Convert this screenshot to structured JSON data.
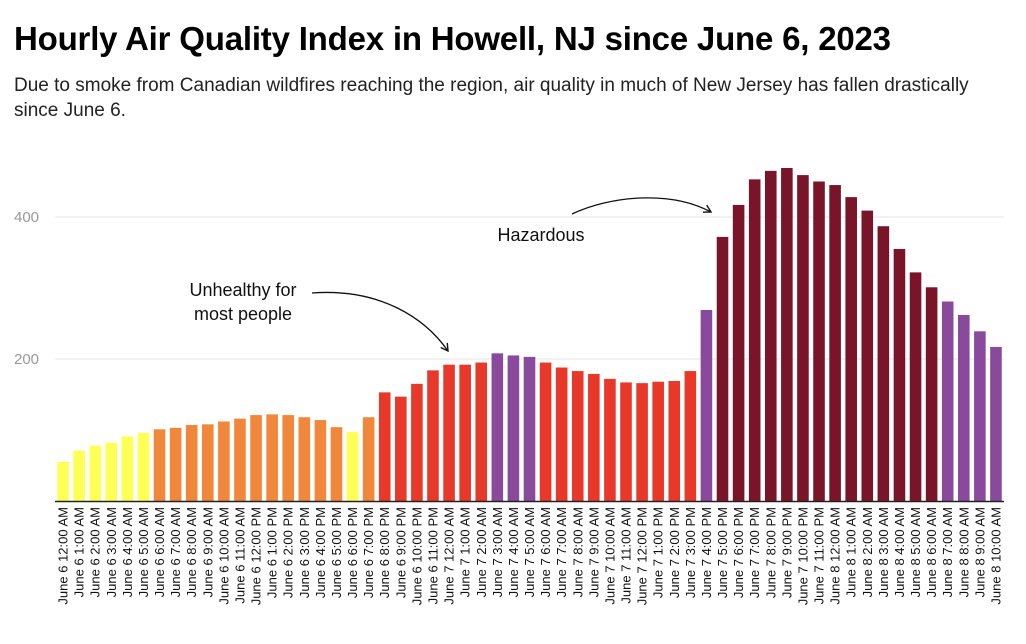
{
  "header": {
    "title": "Hourly Air Quality Index in Howell, NJ since June 6, 2023",
    "subtitle": "Due to smoke from Canadian wildfires reaching the region, air quality in much of New Jersey has fallen drastically since June 6."
  },
  "chart_data": {
    "type": "bar",
    "title": "Hourly Air Quality Index in Howell, NJ since June 6, 2023",
    "xlabel": "",
    "ylabel": "",
    "ylim": [
      0,
      480
    ],
    "yticks": [
      200,
      400
    ],
    "grid": true,
    "colors": {
      "yellow": "#ffff55",
      "orange": "#f0873a",
      "red": "#e8382a",
      "purple": "#8a4a9c",
      "maroon": "#7a1428",
      "grid": "#e6e6e6",
      "axis": "#222222"
    },
    "categories": [
      "June 6 12:00 AM",
      "June 6 1:00 AM",
      "June 6 2:00 AM",
      "June 6 3:00 AM",
      "June 6 4:00 AM",
      "June 6 5:00 AM",
      "June 6 6:00 AM",
      "June 6 7:00 AM",
      "June 6 8:00 AM",
      "June 6 9:00 AM",
      "June 6 10:00 AM",
      "June 6 11:00 AM",
      "June 6 12:00 PM",
      "June 6 1:00 PM",
      "June 6 2:00 PM",
      "June 6 3:00 PM",
      "June 6 4:00 PM",
      "June 6 5:00 PM",
      "June 6 6:00 PM",
      "June 6 7:00 PM",
      "June 6 8:00 PM",
      "June 6 9:00 PM",
      "June 6 10:00 PM",
      "June 6 11:00 PM",
      "June 7 12:00 AM",
      "June 7 1:00 AM",
      "June 7 2:00 AM",
      "June 7 3:00 AM",
      "June 7 4:00 AM",
      "June 7 5:00 AM",
      "June 7 6:00 AM",
      "June 7 7:00 AM",
      "June 7 8:00 AM",
      "June 7 9:00 AM",
      "June 7 10:00 AM",
      "June 7 11:00 AM",
      "June 7 12:00 PM",
      "June 7 1:00 PM",
      "June 7 2:00 PM",
      "June 7 3:00 PM",
      "June 7 4:00 PM",
      "June 7 5:00 PM",
      "June 7 6:00 PM",
      "June 7 7:00 PM",
      "June 7 8:00 PM",
      "June 7 9:00 PM",
      "June 7 10:00 PM",
      "June 7 11:00 PM",
      "June 8 12:00 AM",
      "June 8 1:00 AM",
      "June 8 2:00 AM",
      "June 8 3:00 AM",
      "June 8 4:00 AM",
      "June 8 5:00 AM",
      "June 8 6:00 AM",
      "June 8 7:00 AM",
      "June 8 8:00 AM",
      "June 8 9:00 AM",
      "June 8 10:00 AM"
    ],
    "values": [
      55,
      71,
      78,
      82,
      91,
      96,
      101,
      103,
      107,
      108,
      112,
      116,
      121,
      122,
      121,
      118,
      114,
      104,
      97,
      118,
      153,
      147,
      165,
      184,
      192,
      192,
      195,
      208,
      205,
      203,
      195,
      188,
      183,
      179,
      172,
      167,
      166,
      168,
      169,
      183,
      269,
      372,
      417,
      453,
      465,
      469,
      459,
      450,
      445,
      428,
      409,
      387,
      355,
      322,
      301,
      281,
      262,
      239,
      217
    ],
    "bar_colors": [
      "yellow",
      "yellow",
      "yellow",
      "yellow",
      "yellow",
      "yellow",
      "orange",
      "orange",
      "orange",
      "orange",
      "orange",
      "orange",
      "orange",
      "orange",
      "orange",
      "orange",
      "orange",
      "orange",
      "yellow",
      "orange",
      "red",
      "red",
      "red",
      "red",
      "red",
      "red",
      "red",
      "purple",
      "purple",
      "purple",
      "red",
      "red",
      "red",
      "red",
      "red",
      "red",
      "red",
      "red",
      "red",
      "red",
      "purple",
      "maroon",
      "maroon",
      "maroon",
      "maroon",
      "maroon",
      "maroon",
      "maroon",
      "maroon",
      "maroon",
      "maroon",
      "maroon",
      "maroon",
      "maroon",
      "maroon",
      "purple",
      "purple",
      "purple",
      "purple"
    ],
    "annotations": [
      {
        "lines": [
          "Unhealthy for",
          "most people"
        ]
      },
      {
        "lines": [
          "Hazardous"
        ]
      }
    ]
  }
}
